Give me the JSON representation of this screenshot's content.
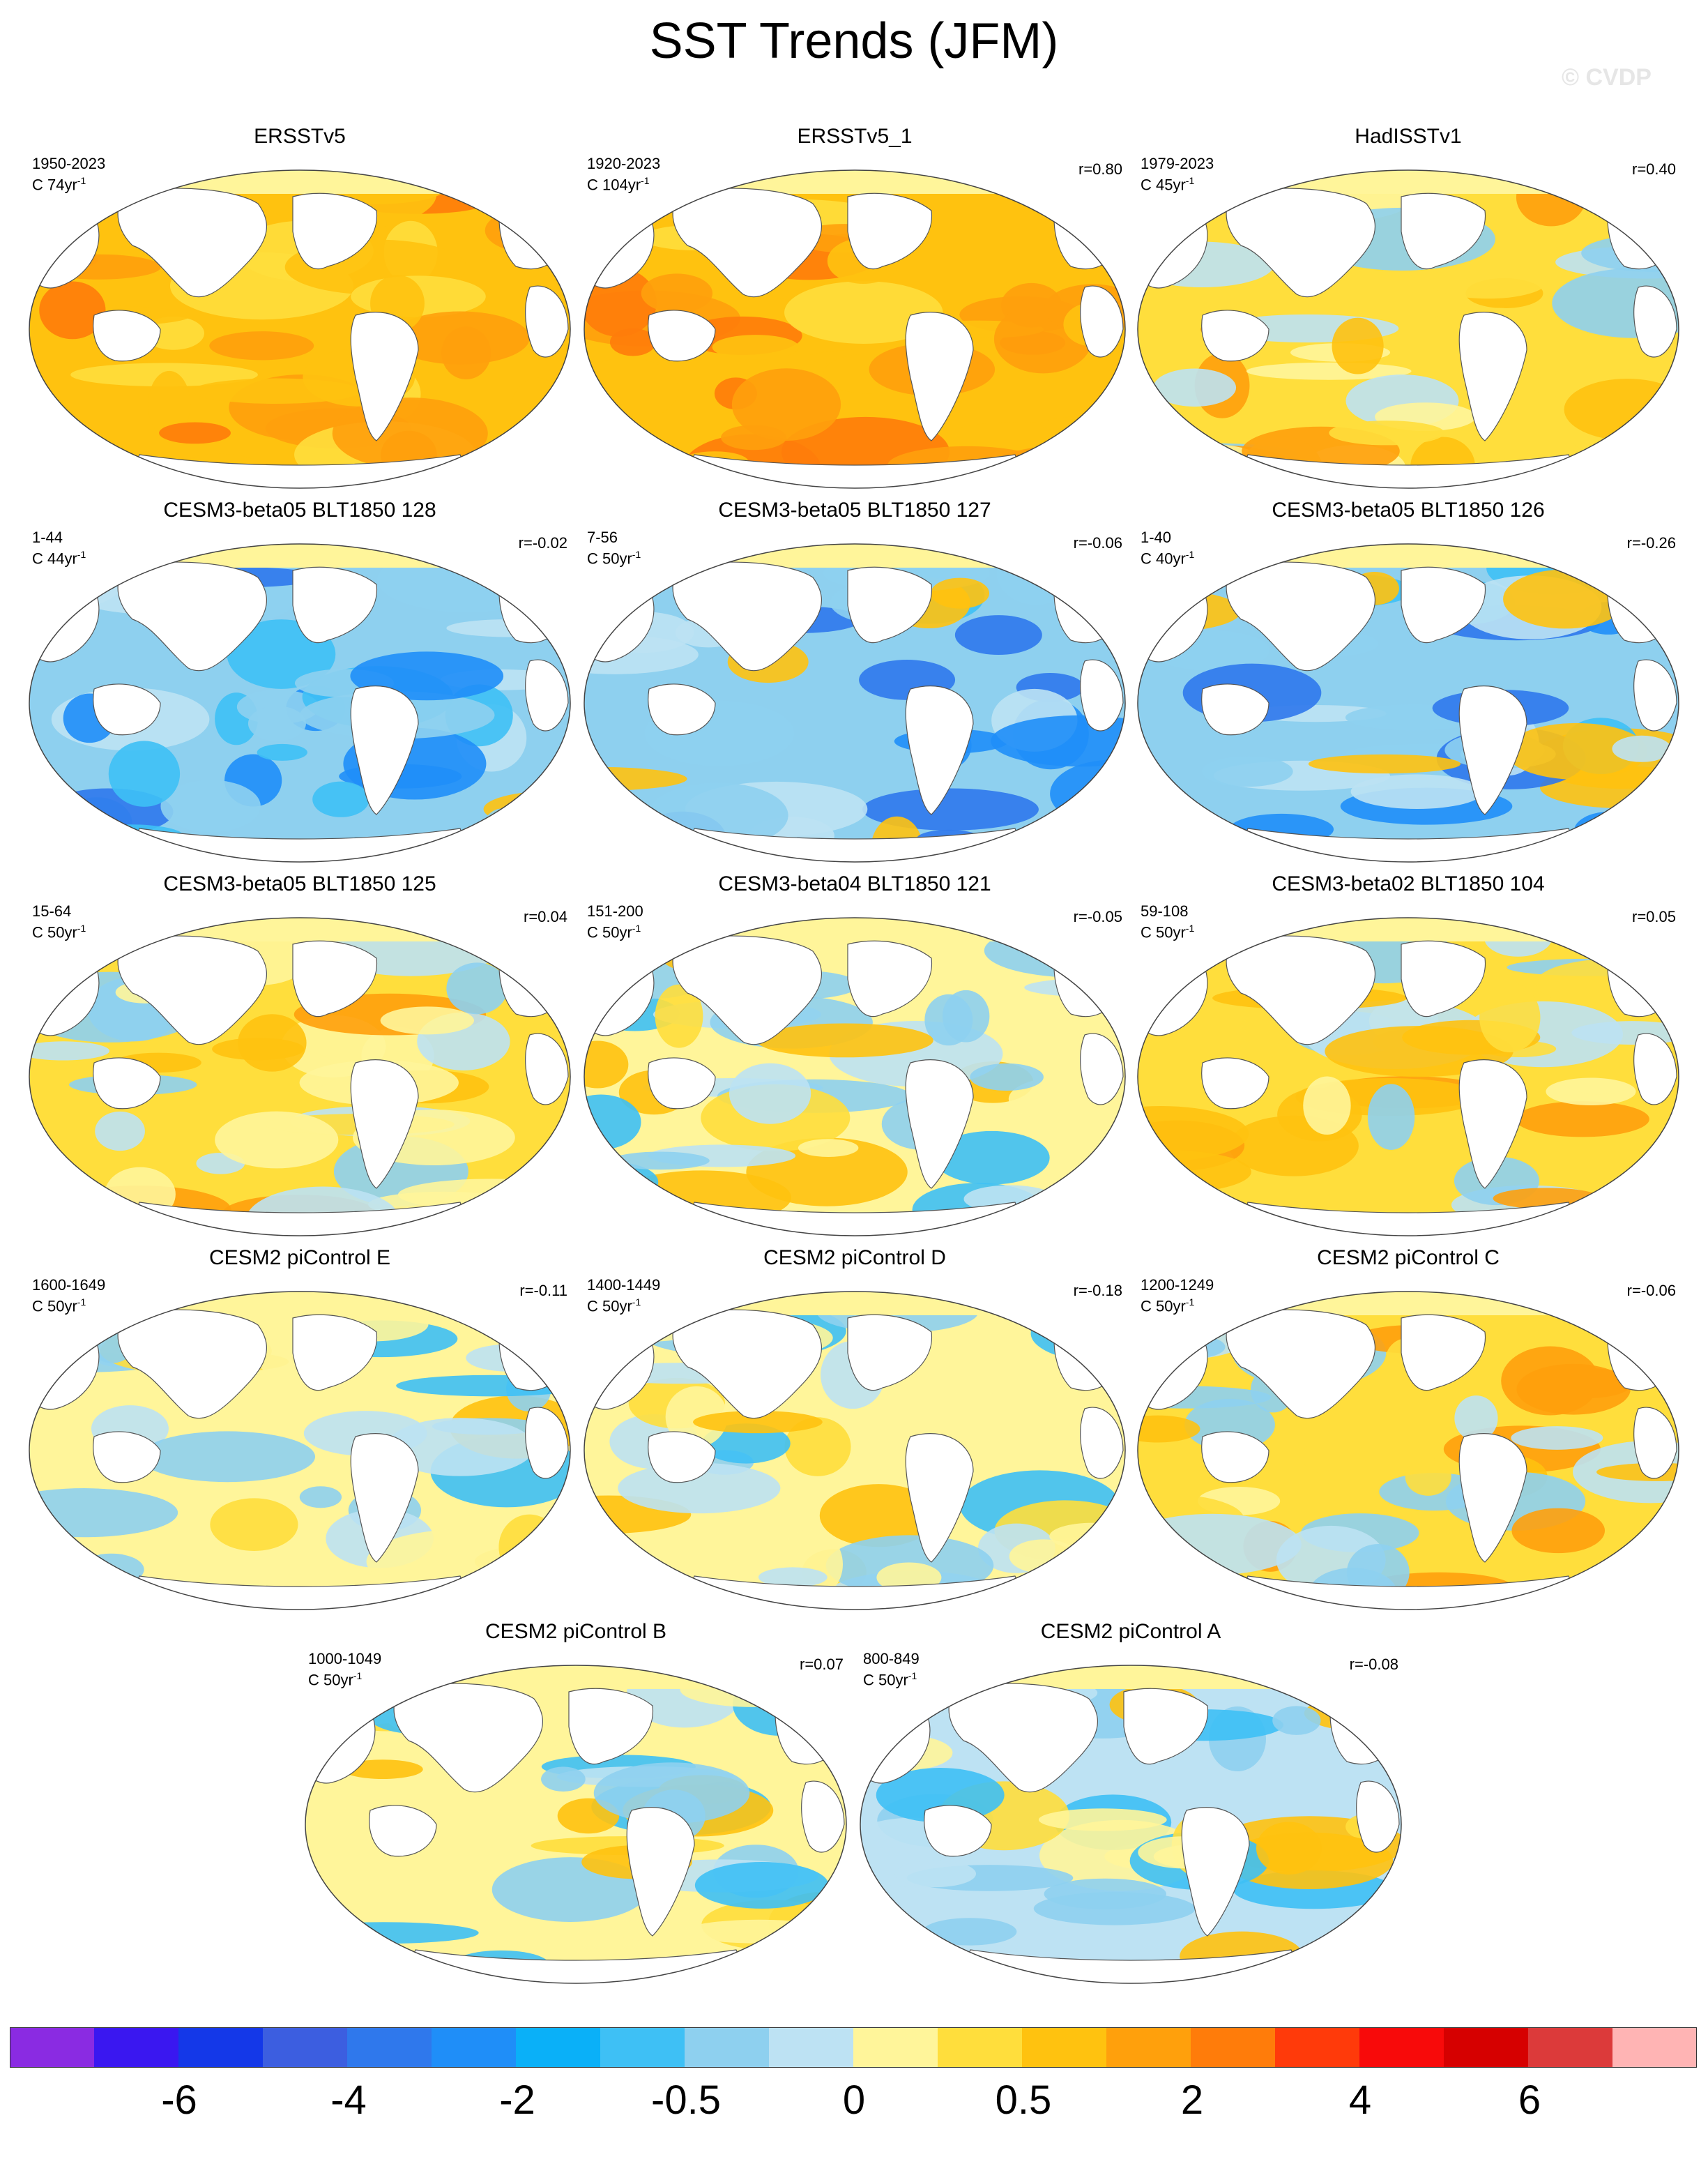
{
  "title": "SST Trends (JFM)",
  "watermark": "© CVDP",
  "panels": [
    {
      "title": "ERSSTv5",
      "years": "1950-2023",
      "rate_prefix": "C 74yr",
      "rate_exp": "-1",
      "r": "",
      "style": "warm"
    },
    {
      "title": "ERSSTv5_1",
      "years": "1920-2023",
      "rate_prefix": "C 104yr",
      "rate_exp": "-1",
      "r": "r=0.80",
      "style": "warm"
    },
    {
      "title": "HadISSTv1",
      "years": "1979-2023",
      "rate_prefix": "C 45yr",
      "rate_exp": "-1",
      "r": "r=0.40",
      "style": "mixedwarm"
    },
    {
      "title": "CESM3-beta05 BLT1850 128",
      "years": "1-44",
      "rate_prefix": "C 44yr",
      "rate_exp": "-1",
      "r": "r=-0.02",
      "style": "cool"
    },
    {
      "title": "CESM3-beta05 BLT1850 127",
      "years": "7-56",
      "rate_prefix": "C 50yr",
      "rate_exp": "-1",
      "r": "r=-0.06",
      "style": "cool"
    },
    {
      "title": "CESM3-beta05 BLT1850 126",
      "years": "1-40",
      "rate_prefix": "C 40yr",
      "rate_exp": "-1",
      "r": "r=-0.26",
      "style": "cool"
    },
    {
      "title": "CESM3-beta05 BLT1850 125",
      "years": "15-64",
      "rate_prefix": "C 50yr",
      "rate_exp": "-1",
      "r": "r=0.04",
      "style": "mixedwarm"
    },
    {
      "title": "CESM3-beta04 BLT1850 121",
      "years": "151-200",
      "rate_prefix": "C 50yr",
      "rate_exp": "-1",
      "r": "r=-0.05",
      "style": "mixed"
    },
    {
      "title": "CESM3-beta02 BLT1850 104",
      "years": "59-108",
      "rate_prefix": "C 50yr",
      "rate_exp": "-1",
      "r": "r=0.05",
      "style": "mixedwarm"
    },
    {
      "title": "CESM2 piControl E",
      "years": "1600-1649",
      "rate_prefix": "C 50yr",
      "rate_exp": "-1",
      "r": "r=-0.11",
      "style": "mixed"
    },
    {
      "title": "CESM2 piControl D",
      "years": "1400-1449",
      "rate_prefix": "C 50yr",
      "rate_exp": "-1",
      "r": "r=-0.18",
      "style": "mixed"
    },
    {
      "title": "CESM2 piControl C",
      "years": "1200-1249",
      "rate_prefix": "C 50yr",
      "rate_exp": "-1",
      "r": "r=-0.06",
      "style": "mixedwarm"
    },
    {
      "title": "CESM2 piControl B",
      "years": "1000-1049",
      "rate_prefix": "C 50yr",
      "rate_exp": "-1",
      "r": "r=0.07",
      "style": "mixed"
    },
    {
      "title": "CESM2 piControl A",
      "years": "800-849",
      "rate_prefix": "C 50yr",
      "rate_exp": "-1",
      "r": "r=-0.08",
      "style": "mixedcool"
    }
  ],
  "colorbar": {
    "colors": [
      "#8a2be2",
      "#3a17f0",
      "#1438e8",
      "#3c5ee0",
      "#2f78ec",
      "#1f8ef8",
      "#0ab0f8",
      "#3ec0f5",
      "#8ed0ef",
      "#bde2f3",
      "#fff59a",
      "#ffde3c",
      "#ffc20f",
      "#ffa00c",
      "#ff7c0a",
      "#ff3a0a",
      "#f80a0a",
      "#d60000",
      "#dc3a3a",
      "#ffb4b4"
    ],
    "labels": [
      "-6",
      "-4",
      "-2",
      "-0.5",
      "0",
      "0.5",
      "2",
      "4",
      "6"
    ]
  }
}
